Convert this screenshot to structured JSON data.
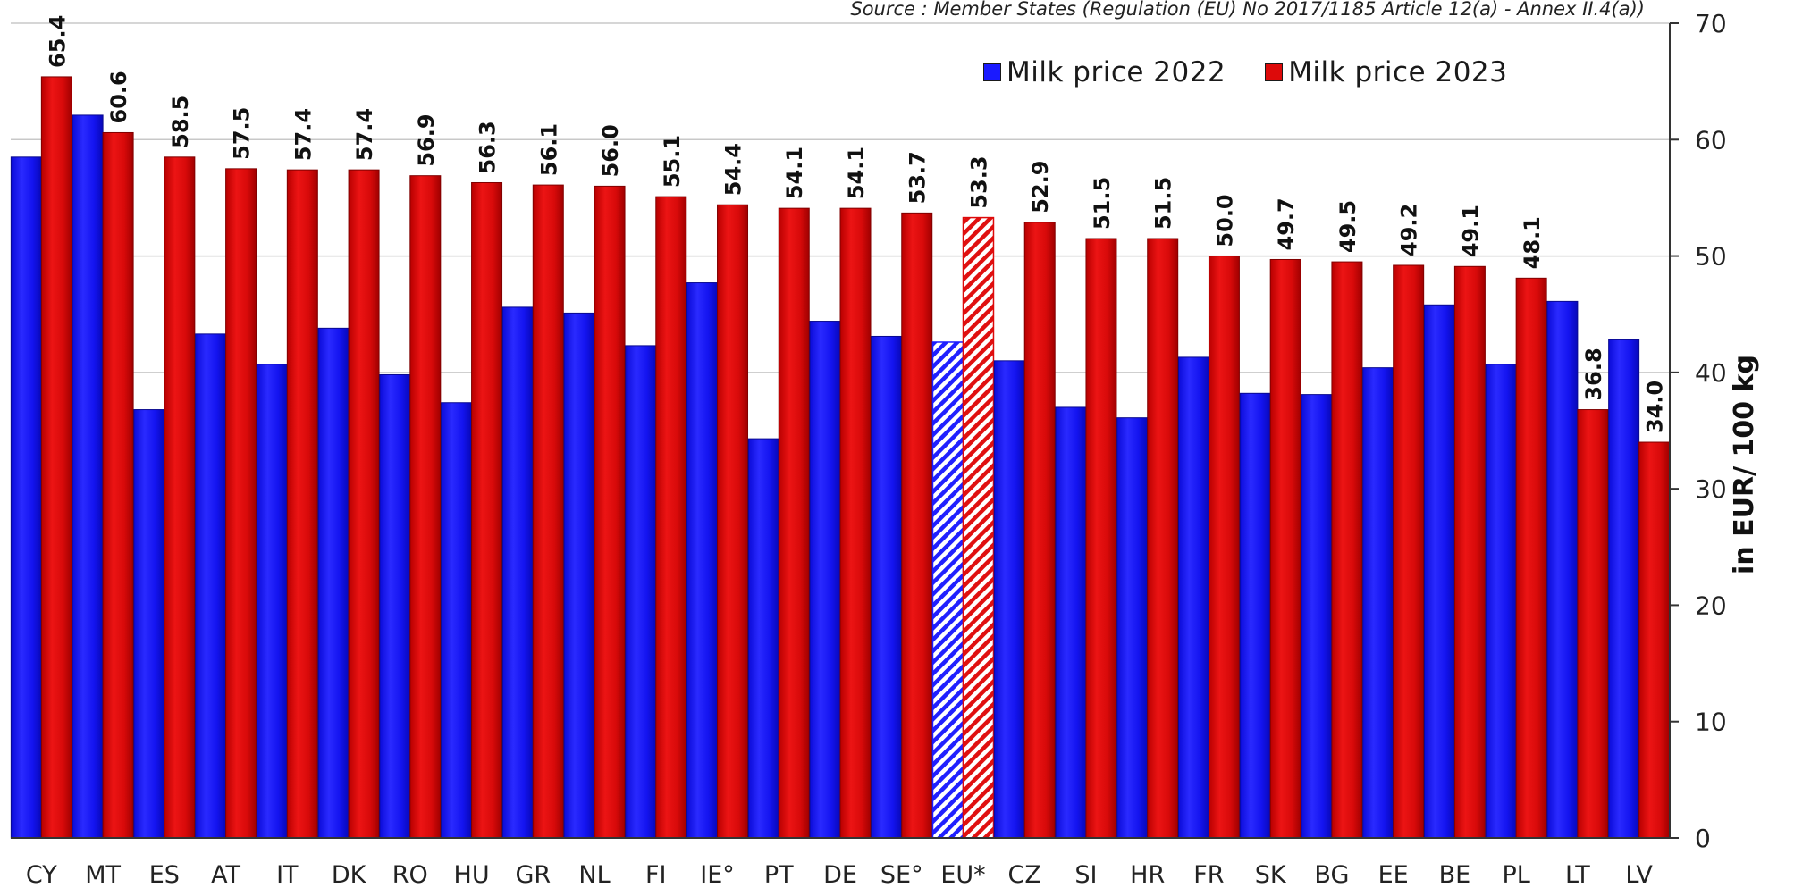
{
  "chart_data": {
    "type": "bar",
    "source_note": "Source : Member States (Regulation (EU) No 2017/1185 Article 12(a) - Annex II.4(a))",
    "ylabel": "in EUR/ 100 kg",
    "ylim": [
      0,
      70
    ],
    "yticks": [
      0,
      10,
      20,
      30,
      40,
      50,
      60,
      70
    ],
    "grid": true,
    "legend_position": "top-right",
    "categories": [
      "CY",
      "MT",
      "ES",
      "AT",
      "IT",
      "DK",
      "RO",
      "HU",
      "GR",
      "NL",
      "FI",
      "IE°",
      "PT",
      "DE",
      "SE°",
      "EU*",
      "CZ",
      "SI",
      "HR",
      "FR",
      "SK",
      "BG",
      "EE",
      "BE",
      "PL",
      "LT",
      "LV"
    ],
    "highlighted_category": "EU*",
    "series": [
      {
        "name": "Milk price 2022",
        "color": "#1a1aff",
        "values": [
          58.5,
          62.1,
          36.8,
          43.3,
          40.7,
          43.8,
          39.8,
          37.4,
          45.6,
          45.1,
          42.3,
          47.7,
          34.3,
          44.4,
          43.1,
          42.6,
          41.0,
          37.0,
          36.1,
          41.3,
          38.2,
          38.1,
          40.4,
          45.8,
          40.7,
          46.1,
          42.8
        ]
      },
      {
        "name": "Milk price 2023",
        "color": "#dd0a0a",
        "values": [
          65.4,
          60.6,
          58.5,
          57.5,
          57.4,
          57.4,
          56.9,
          56.3,
          56.1,
          56.0,
          55.1,
          54.4,
          54.1,
          54.1,
          53.7,
          53.3,
          52.9,
          51.5,
          51.5,
          50.0,
          49.7,
          49.5,
          49.2,
          49.1,
          48.1,
          36.8,
          34.0
        ],
        "labels": [
          "65.4",
          "60.6",
          "58.5",
          "57.5",
          "57.4",
          "57.4",
          "56.9",
          "56.3",
          "56.1",
          "56.0",
          "55.1",
          "54.4",
          "54.1",
          "54.1",
          "53.7",
          "53.3",
          "52.9",
          "51.5",
          "51.5",
          "50.0",
          "49.7",
          "49.5",
          "49.2",
          "49.1",
          "48.1",
          "36.8",
          "34.0"
        ]
      }
    ]
  }
}
